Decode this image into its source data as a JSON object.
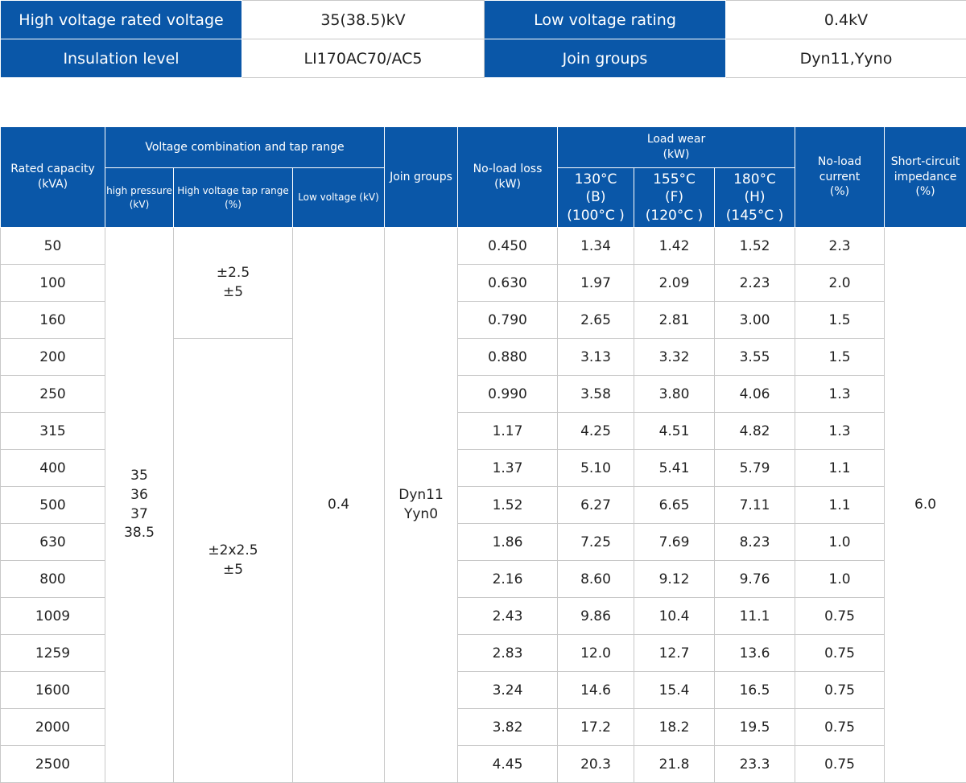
{
  "spec": {
    "row1": [
      "High voltage rated voltage",
      "35(38.5)kV",
      "Low voltage rating",
      "0.4kV"
    ],
    "row2": [
      "Insulation level",
      "LI170AC70/AC5",
      "Join groups",
      "Dyn11,Yyno"
    ]
  },
  "header": {
    "rated_capacity": "Rated capacity\n(kVA)",
    "voltage_combination": "Voltage combination and tap range",
    "high_pressure": "high pressure\n(kV)",
    "hv_tap_range": "High voltage tap range\n(%)",
    "low_voltage": "Low voltage (kV)",
    "join_groups": "Join groups",
    "no_load_loss": "No-load loss\n(kW)",
    "load_wear": "Load wear\n(kW)",
    "temp_130": "130°C\n(B)\n(100°C )",
    "temp_155": "155°C\n(F)\n(120°C )",
    "temp_180": "180°C\n(H)\n(145°C )",
    "no_load_current": "No-load\ncurrent\n(%)",
    "short_circuit": "Short-circuit\nimpedance\n(%)"
  },
  "merged": {
    "high_pressure_values": "35\n36\n37\n38.5",
    "tap_range_1": "±2.5\n±5",
    "tap_range_2": "±2x2.5\n±5",
    "low_voltage_value": "0.4",
    "join_groups_value": "Dyn11\nYyn0",
    "short_circuit_value": "6.0"
  },
  "rows": [
    {
      "capacity": "50",
      "no_load_loss": "0.450",
      "b": "1.34",
      "f": "1.42",
      "h": "1.52",
      "current": "2.3"
    },
    {
      "capacity": "100",
      "no_load_loss": "0.630",
      "b": "1.97",
      "f": "2.09",
      "h": "2.23",
      "current": "2.0"
    },
    {
      "capacity": "160",
      "no_load_loss": "0.790",
      "b": "2.65",
      "f": "2.81",
      "h": "3.00",
      "current": "1.5"
    },
    {
      "capacity": "200",
      "no_load_loss": "0.880",
      "b": "3.13",
      "f": "3.32",
      "h": "3.55",
      "current": "1.5"
    },
    {
      "capacity": "250",
      "no_load_loss": "0.990",
      "b": "3.58",
      "f": "3.80",
      "h": "4.06",
      "current": "1.3"
    },
    {
      "capacity": "315",
      "no_load_loss": "1.17",
      "b": "4.25",
      "f": "4.51",
      "h": "4.82",
      "current": "1.3"
    },
    {
      "capacity": "400",
      "no_load_loss": "1.37",
      "b": "5.10",
      "f": "5.41",
      "h": "5.79",
      "current": "1.1"
    },
    {
      "capacity": "500",
      "no_load_loss": "1.52",
      "b": "6.27",
      "f": "6.65",
      "h": "7.11",
      "current": "1.1"
    },
    {
      "capacity": "630",
      "no_load_loss": "1.86",
      "b": "7.25",
      "f": "7.69",
      "h": "8.23",
      "current": "1.0"
    },
    {
      "capacity": "800",
      "no_load_loss": "2.16",
      "b": "8.60",
      "f": "9.12",
      "h": "9.76",
      "current": "1.0"
    },
    {
      "capacity": "1009",
      "no_load_loss": "2.43",
      "b": "9.86",
      "f": "10.4",
      "h": "11.1",
      "current": "0.75"
    },
    {
      "capacity": "1259",
      "no_load_loss": "2.83",
      "b": "12.0",
      "f": "12.7",
      "h": "13.6",
      "current": "0.75"
    },
    {
      "capacity": "1600",
      "no_load_loss": "3.24",
      "b": "14.6",
      "f": "15.4",
      "h": "16.5",
      "current": "0.75"
    },
    {
      "capacity": "2000",
      "no_load_loss": "3.82",
      "b": "17.2",
      "f": "18.2",
      "h": "19.5",
      "current": "0.75"
    },
    {
      "capacity": "2500",
      "no_load_loss": "4.45",
      "b": "20.3",
      "f": "21.8",
      "h": "23.3",
      "current": "0.75"
    }
  ],
  "colors": {
    "header_bg": "#0a57a8",
    "header_text": "#ffffff",
    "border": "#c8c8c8"
  }
}
